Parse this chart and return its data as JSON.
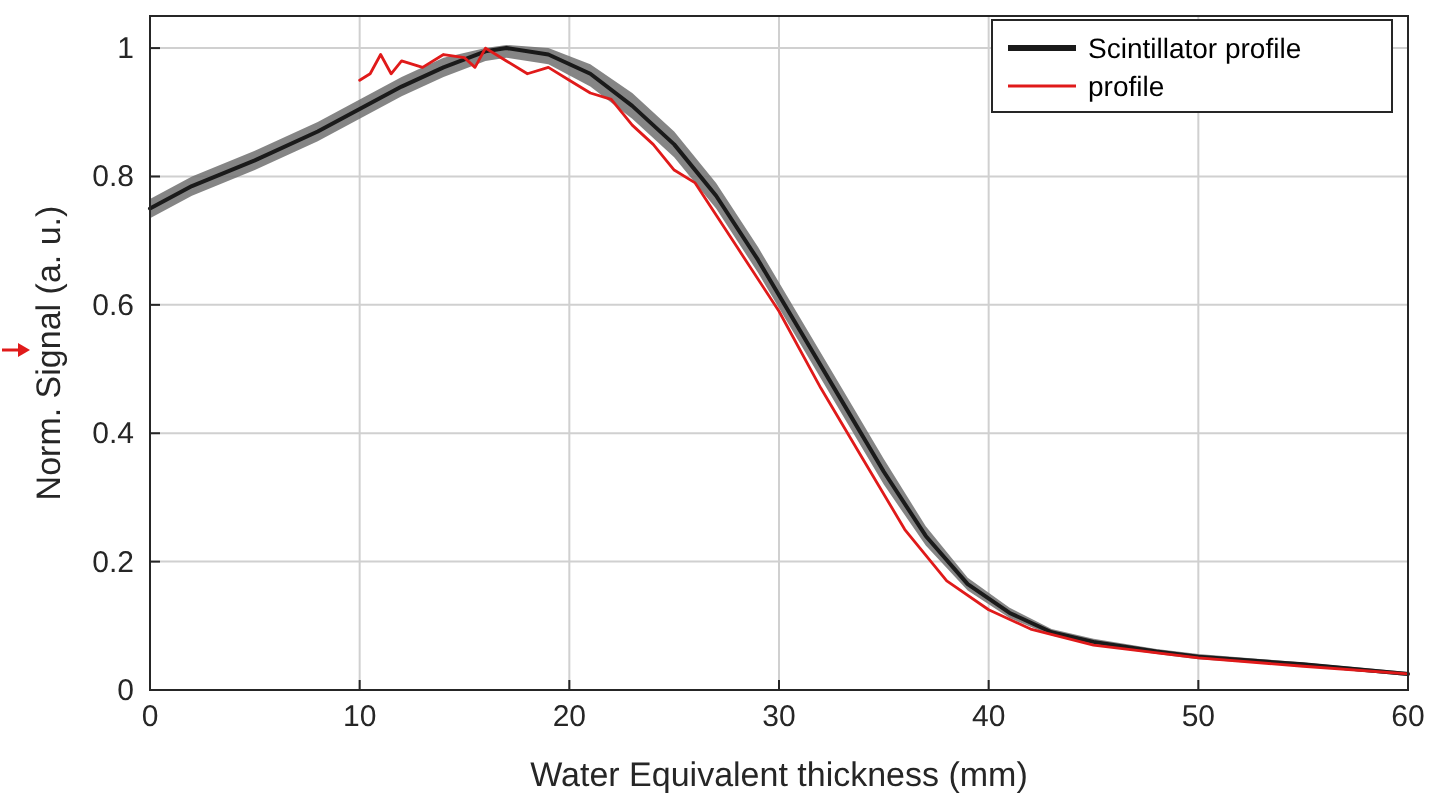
{
  "chart_data": {
    "type": "line",
    "xlabel": "Water Equivalent thickness (mm)",
    "ylabel": "Norm. Signal (a. u.)",
    "xlim": [
      0,
      60
    ],
    "ylim": [
      0,
      1.05
    ],
    "xticks": [
      0,
      10,
      20,
      30,
      40,
      50,
      60
    ],
    "yticks": [
      0,
      0.2,
      0.4,
      0.6,
      0.8,
      1
    ],
    "grid": true,
    "legend": "top right",
    "marker": "none",
    "line_style": "solid",
    "series": [
      {
        "name": "Scintillator profile",
        "color": "#1a1a1a",
        "x": [
          0,
          2,
          5,
          8,
          10,
          12,
          14,
          16,
          17,
          19,
          21,
          23,
          25,
          27,
          29,
          31,
          33,
          35,
          37,
          39,
          41,
          43,
          45,
          48,
          50,
          55,
          60
        ],
        "values": [
          0.75,
          0.785,
          0.825,
          0.87,
          0.905,
          0.94,
          0.97,
          0.995,
          1.0,
          0.99,
          0.96,
          0.91,
          0.85,
          0.77,
          0.67,
          0.56,
          0.45,
          0.34,
          0.24,
          0.165,
          0.12,
          0.09,
          0.075,
          0.06,
          0.052,
          0.04,
          0.025
        ],
        "lower": [
          0.735,
          0.77,
          0.81,
          0.855,
          0.89,
          0.925,
          0.955,
          0.98,
          0.985,
          0.975,
          0.94,
          0.89,
          0.83,
          0.75,
          0.65,
          0.54,
          0.43,
          0.32,
          0.225,
          0.155,
          0.112,
          0.085,
          0.07,
          0.056,
          0.048,
          0.037,
          0.022
        ],
        "upper": [
          0.765,
          0.8,
          0.84,
          0.885,
          0.92,
          0.955,
          0.985,
          1.0,
          1.005,
          1.0,
          0.975,
          0.93,
          0.87,
          0.79,
          0.69,
          0.58,
          0.47,
          0.36,
          0.255,
          0.175,
          0.128,
          0.095,
          0.08,
          0.064,
          0.056,
          0.043,
          0.028
        ]
      },
      {
        "name": "profile",
        "color": "#e01a1a",
        "x": [
          10,
          10.5,
          11,
          11.5,
          12,
          13,
          14,
          15,
          15.5,
          16,
          16.5,
          17,
          18,
          19,
          20,
          21,
          22,
          23,
          24,
          25,
          26,
          27,
          28,
          30,
          32,
          34,
          36,
          38,
          40,
          42,
          45,
          50,
          55,
          60
        ],
        "values": [
          0.95,
          0.96,
          0.99,
          0.96,
          0.98,
          0.97,
          0.99,
          0.985,
          0.97,
          1.0,
          0.99,
          0.98,
          0.96,
          0.97,
          0.95,
          0.93,
          0.92,
          0.88,
          0.85,
          0.81,
          0.79,
          0.74,
          0.69,
          0.59,
          0.47,
          0.36,
          0.25,
          0.17,
          0.125,
          0.095,
          0.07,
          0.05,
          0.037,
          0.025
        ]
      }
    ]
  }
}
